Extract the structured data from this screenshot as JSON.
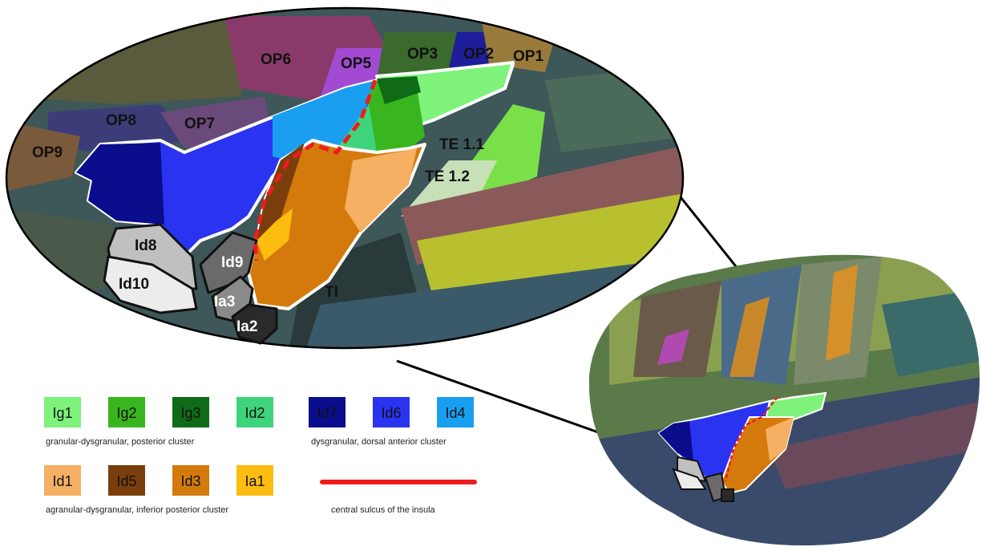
{
  "region_labels": [
    "OP6",
    "OP5",
    "OP3",
    "OP2",
    "OP1",
    "OP8",
    "OP7",
    "OP9",
    "TE 1.1",
    "TE 1.2",
    "Id8",
    "Id9",
    "Id10",
    "Ia3",
    "Ia2",
    "TI"
  ],
  "legend": {
    "groups": [
      {
        "caption": "granular-dysgranular, posterior cluster",
        "items": [
          {
            "label": "Ig1",
            "color": "#7ef27a"
          },
          {
            "label": "Ig2",
            "color": "#39b61f"
          },
          {
            "label": "Ig3",
            "color": "#0f6b17"
          },
          {
            "label": "Id2",
            "color": "#3ed47c"
          }
        ]
      },
      {
        "caption": "dysgranular, dorsal anterior cluster",
        "items": [
          {
            "label": "Id7",
            "color": "#0a0d8c"
          },
          {
            "label": "Id6",
            "color": "#2a34f0"
          },
          {
            "label": "Id4",
            "color": "#1a9ff0"
          }
        ]
      },
      {
        "caption": "agranular-dysgranular, inferior posterior cluster",
        "items": [
          {
            "label": "Id1",
            "color": "#f5b064"
          },
          {
            "label": "Id5",
            "color": "#7a3e0c"
          },
          {
            "label": "Id3",
            "color": "#d47a0c"
          },
          {
            "label": "Ia1",
            "color": "#fcbc10"
          }
        ]
      }
    ],
    "sulcus": {
      "label": "central sulcus of the insula",
      "color": "#ee1c1c"
    }
  }
}
